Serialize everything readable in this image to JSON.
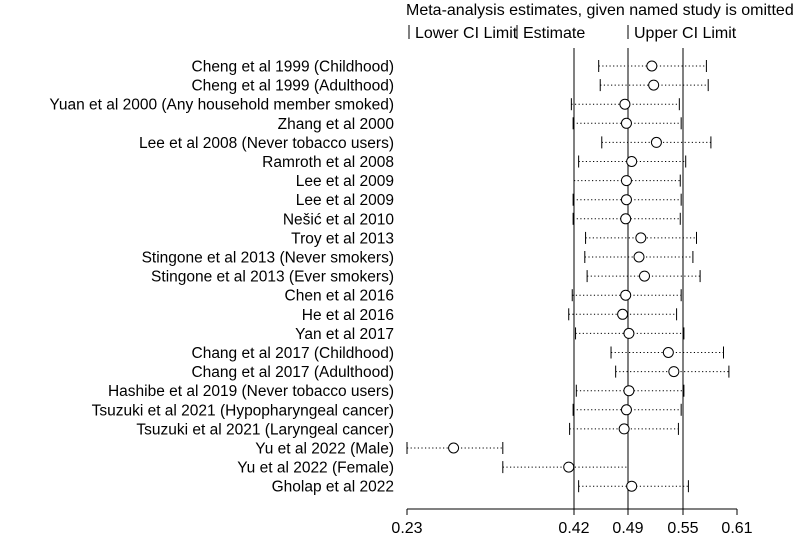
{
  "chart_data": {
    "type": "forest",
    "title": "Meta-analysis estimates, given named study is omitted",
    "legend": [
      "Lower CI Limit",
      "Estimate",
      "Upper CI Limit"
    ],
    "x_ticks": [
      0.23,
      0.42,
      0.49,
      0.55,
      0.61
    ],
    "xlim": [
      0.23,
      0.61
    ],
    "reference_lines": {
      "lower": 0.42,
      "estimate": 0.49,
      "upper": 0.55
    },
    "studies": [
      {
        "label": "Cheng et al 1999 (Childhood)",
        "lower": 0.452,
        "estimate": 0.516,
        "upper": 0.576
      },
      {
        "label": "Cheng et al 1999 (Adulthood)",
        "lower": 0.454,
        "estimate": 0.518,
        "upper": 0.578
      },
      {
        "label": "Yuan et al 2000 (Any household member smoked)",
        "lower": 0.417,
        "estimate": 0.486,
        "upper": 0.546
      },
      {
        "label": "Zhang et al 2000",
        "lower": 0.419,
        "estimate": 0.488,
        "upper": 0.548
      },
      {
        "label": "Lee et al 2008 (Never tobacco users)",
        "lower": 0.456,
        "estimate": 0.521,
        "upper": 0.581
      },
      {
        "label": "Ramroth et al 2008",
        "lower": 0.426,
        "estimate": 0.494,
        "upper": 0.553
      },
      {
        "label": "Lee et al 2009",
        "lower": 0.42,
        "estimate": 0.488,
        "upper": 0.547
      },
      {
        "label": "Lee et al 2009",
        "lower": 0.419,
        "estimate": 0.488,
        "upper": 0.548
      },
      {
        "label": "Nešić et al 2010",
        "lower": 0.419,
        "estimate": 0.487,
        "upper": 0.547
      },
      {
        "label": "Troy et al 2013",
        "lower": 0.435,
        "estimate": 0.504,
        "upper": 0.565
      },
      {
        "label": "Stingone et al 2013 (Never smokers)",
        "lower": 0.434,
        "estimate": 0.502,
        "upper": 0.561
      },
      {
        "label": "Stingone et al 2013 (Ever smokers)",
        "lower": 0.437,
        "estimate": 0.508,
        "upper": 0.569
      },
      {
        "label": "Chen et al 2016",
        "lower": 0.418,
        "estimate": 0.487,
        "upper": 0.548
      },
      {
        "label": "He et al 2016",
        "lower": 0.414,
        "estimate": 0.483,
        "upper": 0.543
      },
      {
        "label": "Yan et al 2017",
        "lower": 0.422,
        "estimate": 0.491,
        "upper": 0.551
      },
      {
        "label": "Chang et al 2017 (Childhood)",
        "lower": 0.468,
        "estimate": 0.534,
        "upper": 0.595
      },
      {
        "label": "Chang et al 2017 (Adulthood)",
        "lower": 0.474,
        "estimate": 0.54,
        "upper": 0.601
      },
      {
        "label": "Hashibe et al 2019 (Never tobacco users)",
        "lower": 0.423,
        "estimate": 0.491,
        "upper": 0.551
      },
      {
        "label": "Tsuzuki et al 2021 (Hypopharyngeal cancer)",
        "lower": 0.419,
        "estimate": 0.488,
        "upper": 0.548
      },
      {
        "label": "Tsuzuki et al 2021 (Laryngeal cancer)",
        "lower": 0.415,
        "estimate": 0.485,
        "upper": 0.545
      },
      {
        "label": "Yu et al 2022 (Male)",
        "lower": 0.23,
        "estimate": 0.283,
        "upper": 0.339
      },
      {
        "label": "Yu et al 2022 (Female)",
        "lower": 0.339,
        "estimate": 0.414,
        "upper": 0.49
      },
      {
        "label": "Gholap et al 2022",
        "lower": 0.426,
        "estimate": 0.494,
        "upper": 0.556
      }
    ]
  }
}
